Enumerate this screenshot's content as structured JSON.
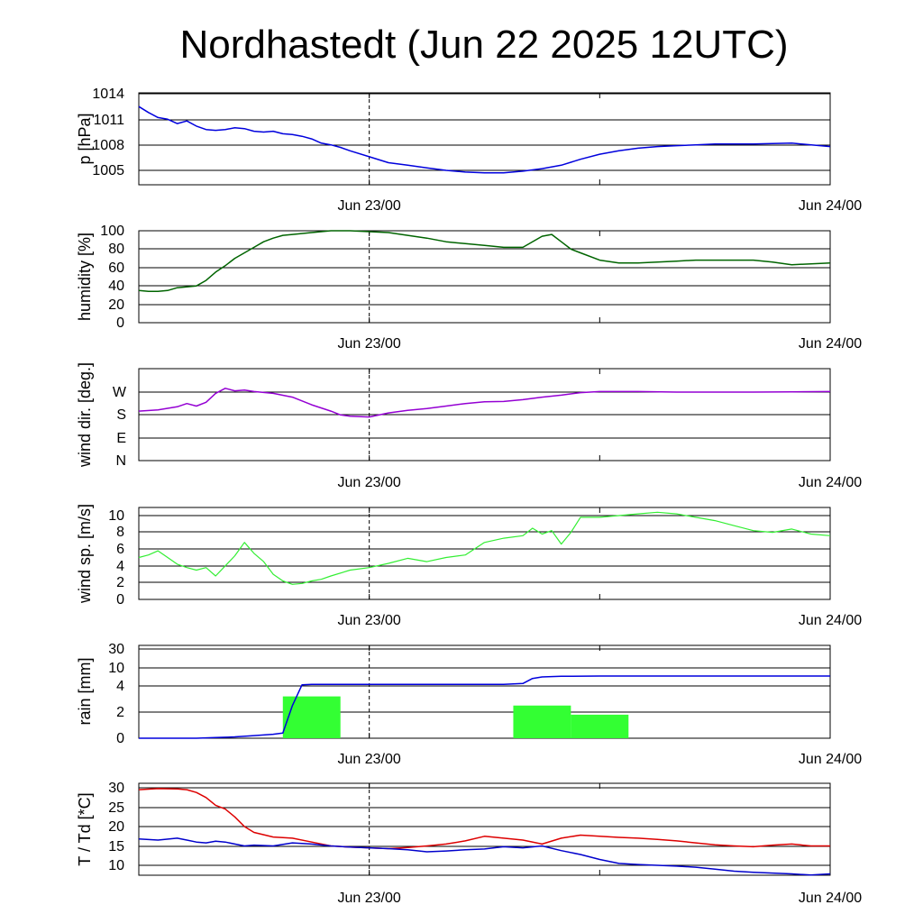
{
  "title": "Nordhastedt (Jun 22 2025 12UTC)",
  "x_tick_labels": [
    "Jun 23/00",
    "Jun 24/00"
  ],
  "colors": {
    "pressure": "#0000dd",
    "humidity": "#006400",
    "wind_dir": "#9400d3",
    "wind_speed": "#33ee33",
    "rain_bars": "#33ff33",
    "rain_accum": "#0000dd",
    "temperature": "#dd0000",
    "dewpoint": "#0000cc"
  },
  "chart_data": [
    {
      "type": "line",
      "ylabel": "p [hPa]",
      "x_unit": "hours after Jun 22 12UTC",
      "ylim": [
        1003.5,
        1014
      ],
      "y_ticks": [
        "1014",
        "1011",
        "1008",
        "1005"
      ],
      "series": [
        {
          "x": [
            0,
            0.5,
            1,
            1.5,
            2,
            2.5,
            3,
            3.5,
            4,
            4.5,
            5,
            5.5,
            6,
            6.5,
            7,
            7.5,
            8,
            8.5,
            9,
            9.5,
            10,
            10.5,
            11,
            12,
            13,
            14,
            15,
            16,
            17,
            18,
            19,
            20,
            21,
            22,
            23,
            24,
            25,
            26,
            27,
            28,
            29,
            30,
            31,
            32,
            34,
            36
          ],
          "y": [
            1012.5,
            1011.8,
            1011.2,
            1011.0,
            1010.5,
            1010.8,
            1010.2,
            1009.8,
            1009.7,
            1009.8,
            1010.0,
            1009.9,
            1009.6,
            1009.5,
            1009.6,
            1009.3,
            1009.2,
            1009.0,
            1008.7,
            1008.2,
            1008.0,
            1007.7,
            1007.3,
            1006.6,
            1005.9,
            1005.6,
            1005.3,
            1005.0,
            1004.8,
            1004.7,
            1004.7,
            1004.9,
            1005.2,
            1005.6,
            1006.3,
            1006.9,
            1007.3,
            1007.6,
            1007.8,
            1007.9,
            1008.0,
            1008.1,
            1008.1,
            1008.1,
            1008.2,
            1007.8
          ]
        }
      ]
    },
    {
      "type": "line",
      "ylabel": "humidity [%]",
      "x_unit": "hours after Jun 22 12UTC",
      "ylim": [
        0,
        100
      ],
      "y_ticks": [
        "100",
        "80",
        "60",
        "40",
        "20",
        "0"
      ],
      "series": [
        {
          "x": [
            0,
            0.5,
            1,
            1.5,
            2,
            2.5,
            3,
            3.5,
            4,
            4.5,
            5,
            5.5,
            6,
            6.5,
            7,
            7.5,
            8,
            9,
            10,
            11,
            12,
            13,
            14,
            15,
            16,
            17,
            18,
            19,
            20,
            21,
            21.5,
            22,
            22.5,
            23,
            24,
            25,
            26,
            27,
            28,
            29,
            30,
            31,
            32,
            33,
            34,
            35,
            36
          ],
          "y": [
            35,
            34,
            34,
            35,
            38,
            39,
            40,
            46,
            55,
            62,
            70,
            76,
            82,
            88,
            92,
            95,
            96,
            98,
            100,
            100,
            99,
            98,
            95,
            92,
            88,
            86,
            84,
            82,
            82,
            94,
            96,
            88,
            80,
            76,
            68,
            65,
            65,
            66,
            67,
            68,
            68,
            68,
            68,
            66,
            63,
            64,
            65
          ]
        }
      ]
    },
    {
      "type": "line",
      "ylabel": "wind dir. [deg.]",
      "x_unit": "hours after Jun 22 12UTC",
      "ylim": [
        0,
        360
      ],
      "y_ticks": [
        "W",
        "S",
        "E",
        "N"
      ],
      "y_tick_values": [
        270,
        180,
        90,
        0
      ],
      "series": [
        {
          "x": [
            0,
            1,
            2,
            2.5,
            3,
            3.5,
            4,
            4.5,
            5,
            5.5,
            6,
            7,
            8,
            9,
            10,
            10.5,
            11,
            12,
            13,
            14,
            15,
            16,
            17,
            18,
            19,
            20,
            21,
            22,
            23,
            24,
            25,
            26,
            28,
            30,
            32,
            34,
            36
          ],
          "y": [
            195,
            200,
            212,
            225,
            215,
            230,
            265,
            285,
            275,
            278,
            272,
            265,
            250,
            220,
            195,
            180,
            175,
            172,
            188,
            198,
            205,
            215,
            225,
            232,
            233,
            240,
            250,
            258,
            268,
            272,
            272,
            272,
            270,
            270,
            270,
            271,
            272
          ]
        }
      ]
    },
    {
      "type": "line",
      "ylabel": "wind sp. [m/s]",
      "x_unit": "hours after Jun 22 12UTC",
      "ylim": [
        0,
        11
      ],
      "y_ticks": [
        "10",
        "8",
        "6",
        "4",
        "2",
        "0"
      ],
      "series": [
        {
          "x": [
            0,
            0.5,
            1,
            1.5,
            2,
            2.5,
            3,
            3.5,
            4,
            4.5,
            5,
            5.5,
            6,
            6.5,
            7,
            7.5,
            8,
            8.5,
            9,
            9.5,
            10,
            11,
            12,
            13,
            14,
            15,
            16,
            17,
            18,
            19,
            20,
            20.5,
            21,
            21.5,
            22,
            22.5,
            23,
            24,
            25,
            26,
            27,
            28,
            29,
            30,
            31,
            32,
            33,
            34,
            35,
            36
          ],
          "y": [
            5.0,
            5.3,
            5.8,
            5.0,
            4.2,
            3.8,
            3.5,
            3.8,
            2.8,
            4.0,
            5.2,
            6.8,
            5.5,
            4.5,
            3.0,
            2.2,
            1.8,
            1.9,
            2.2,
            2.4,
            2.8,
            3.5,
            3.8,
            4.3,
            4.9,
            4.5,
            5.0,
            5.3,
            6.8,
            7.3,
            7.6,
            8.5,
            7.8,
            8.2,
            6.6,
            8.0,
            9.8,
            9.8,
            10.0,
            10.2,
            10.4,
            10.2,
            9.8,
            9.4,
            8.8,
            8.2,
            8.0,
            8.4,
            7.8,
            7.6
          ]
        }
      ]
    },
    {
      "type": "bar",
      "ylabel": "rain [mm]",
      "x_unit": "hours after Jun 22 12UTC",
      "y_ticks": [
        "30",
        "10",
        "4",
        "2",
        "0"
      ],
      "y_tick_values": [
        30,
        10,
        4,
        2,
        0
      ],
      "y_scale": "nonlinear (ticks 0, 2, 4, 10, 30 evenly spaced)",
      "bars": [
        {
          "x_start": 7.5,
          "x_end": 10.5,
          "value": 3.2
        },
        {
          "x_start": 19.5,
          "x_end": 22.5,
          "value": 2.5
        },
        {
          "x_start": 22.5,
          "x_end": 25.5,
          "value": 1.8
        }
      ],
      "series": [
        {
          "name": "accumulated",
          "x": [
            0,
            3,
            4,
            5,
            6,
            7,
            7.5,
            8,
            8.5,
            9,
            19,
            20,
            20.5,
            21,
            22,
            24,
            36
          ],
          "y": [
            0,
            0,
            0.05,
            0.1,
            0.2,
            0.3,
            0.4,
            2.5,
            4.4,
            4.5,
            4.5,
            4.8,
            6.5,
            7.0,
            7.2,
            7.3,
            7.3
          ]
        }
      ]
    },
    {
      "type": "line",
      "ylabel": "T / Td [*C]",
      "x_unit": "hours after Jun 22 12UTC",
      "ylim": [
        7,
        31
      ],
      "y_ticks": [
        "30",
        "25",
        "20",
        "15",
        "10"
      ],
      "series": [
        {
          "name": "T",
          "x": [
            0,
            1,
            2,
            2.5,
            3,
            3.5,
            4,
            4.5,
            5,
            5.5,
            6,
            7,
            8,
            9,
            10,
            11,
            12,
            13,
            14,
            15,
            16,
            17,
            18,
            19,
            20,
            21,
            22,
            23,
            24,
            25,
            26,
            27,
            28,
            29,
            30,
            31,
            32,
            33,
            34,
            35,
            36
          ],
          "y": [
            29.5,
            29.8,
            29.7,
            29.5,
            28.8,
            27.5,
            25.5,
            24.5,
            22.5,
            20.0,
            18.5,
            17.3,
            17.0,
            16.0,
            15.0,
            14.7,
            14.5,
            14.3,
            14.6,
            15.0,
            15.5,
            16.3,
            17.5,
            17.0,
            16.5,
            15.5,
            17.0,
            17.8,
            17.5,
            17.2,
            17.0,
            16.7,
            16.3,
            15.8,
            15.3,
            15.0,
            14.8,
            15.2,
            15.5,
            15.0,
            15.0
          ]
        },
        {
          "name": "Td",
          "x": [
            0,
            1,
            2,
            2.5,
            3,
            3.5,
            4,
            4.5,
            5,
            5.5,
            6,
            7,
            8,
            9,
            10,
            11,
            12,
            13,
            14,
            15,
            16,
            17,
            18,
            19,
            20,
            21,
            22,
            23,
            24,
            25,
            26,
            27,
            28,
            29,
            30,
            31,
            32,
            33,
            34,
            35,
            36
          ],
          "y": [
            16.8,
            16.5,
            17.0,
            16.5,
            16.0,
            15.8,
            16.2,
            16.0,
            15.5,
            15.0,
            15.2,
            15.0,
            15.8,
            15.5,
            15.0,
            14.7,
            14.5,
            14.3,
            14.0,
            13.5,
            13.7,
            14.0,
            14.2,
            14.8,
            14.5,
            15.0,
            13.8,
            12.8,
            11.5,
            10.5,
            10.2,
            10.0,
            9.8,
            9.5,
            9.0,
            8.5,
            8.2,
            8.0,
            7.8,
            7.5,
            7.8
          ]
        }
      ]
    }
  ]
}
